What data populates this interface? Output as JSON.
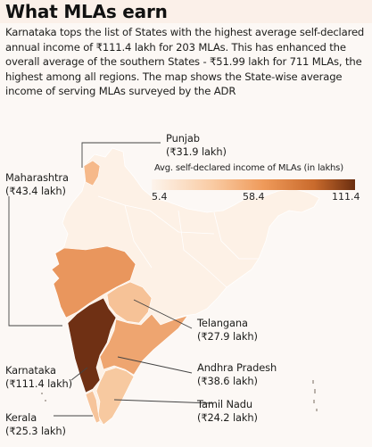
{
  "title": "What MLAs earn",
  "description": "Karnataka tops the list of States with the highest average self-declared annual income of ₹111.4 lakh for 203 MLAs. This has enhanced the overall average of the southern States - ₹51.99 lakh for 711 MLAs, the highest among all regions. The map shows the State-wise average income of serving MLAs surveyed by the ADR",
  "legend": {
    "title": "Avg. self-declared income of MLAs (in lakhs)",
    "min": "5.4",
    "mid": "58.4",
    "max": "111.4"
  },
  "states": [
    {
      "name": "Punjab",
      "value": "(₹31.9 lakh)",
      "color": "#f6b98a"
    },
    {
      "name": "Maharashtra",
      "value": "(₹43.4 lakh)",
      "color": "#e9965d"
    },
    {
      "name": "Telangana",
      "value": "(₹27.9 lakh)",
      "color": "#f6c297"
    },
    {
      "name": "Karnataka",
      "value": "(₹111.4 lakh)",
      "color": "#6f3014"
    },
    {
      "name": "Andhra Pradesh",
      "value": "(₹38.6 lakh)",
      "color": "#eea570"
    },
    {
      "name": "Tamil Nadu",
      "value": "(₹24.2 lakh)",
      "color": "#f7c9a0"
    },
    {
      "name": "Kerala",
      "value": "(₹25.3 lakh)",
      "color": "#f6c49b"
    }
  ]
}
